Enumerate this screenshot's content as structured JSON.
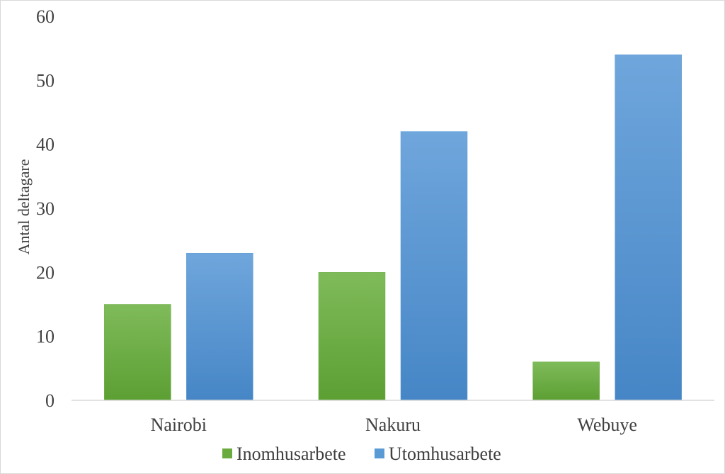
{
  "chart_data": {
    "type": "bar",
    "categories": [
      "Nairobi",
      "Nakuru",
      "Webuye"
    ],
    "series": [
      {
        "name": "Inomhusarbete",
        "values": [
          15,
          20,
          6
        ],
        "color": "#6aab3f"
      },
      {
        "name": "Utomhusarbete",
        "values": [
          23,
          42,
          54
        ],
        "color": "#5b9bd5"
      }
    ],
    "xlabel": "",
    "ylabel": "Antal deltagare",
    "ylim": [
      0,
      60
    ],
    "yticks": [
      0,
      10,
      20,
      30,
      40,
      50,
      60
    ],
    "grid": false,
    "legend": "bottom"
  }
}
